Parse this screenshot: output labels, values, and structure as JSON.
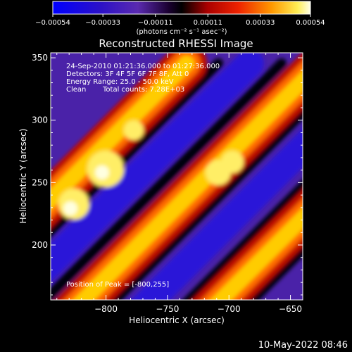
{
  "chart_data": {
    "type": "heatmap",
    "title": "Reconstructed RHESSI Image",
    "xlabel": "Heliocentric X (arcsec)",
    "ylabel": "Heliocentric Y (arcsec)",
    "xlim": [
      -845,
      -640
    ],
    "ylim": [
      156,
      354
    ],
    "x_ticks": [
      -800,
      -750,
      -700,
      -650
    ],
    "x_tick_labels": [
      "−800",
      "−750",
      "−700",
      "−650"
    ],
    "y_ticks": [
      200,
      250,
      300,
      350
    ],
    "y_tick_labels": [
      "200",
      "250",
      "300",
      "350"
    ],
    "colorbar": {
      "vmin": -0.00054,
      "vmax": 0.00054,
      "ticks": [
        -0.00054,
        -0.00033,
        -0.00011,
        0.00011,
        0.00033,
        0.00054
      ],
      "tick_labels": [
        "−0.00054",
        "−0.00033",
        "−0.00011",
        "0.00011",
        "0.00033",
        "0.00054"
      ],
      "units_label": "(photons cm⁻² s⁻¹ asec⁻²)",
      "colormap": [
        "#0000ff",
        "#3a1aa0",
        "#5a2ab0",
        "#000000",
        "#aa0000",
        "#ee2200",
        "#ff8800",
        "#ffdd00",
        "#ffffcc"
      ]
    },
    "annotations": {
      "time_range": "24-Sep-2010 01:21:36.000 to 01:27:36.000",
      "detectors": "Detectors: 3F 4F 5F 6F 7F 8F, Att 0",
      "energy_range": "Energy Range: 25.0 - 50.0 keV",
      "clean": "Clean",
      "total_counts": "Total counts: 7.28E+03",
      "peak": "Position of Peak = [-800,255]"
    },
    "peak_position": [
      -800,
      255
    ],
    "stripe_pattern": {
      "direction": "diagonal, lower-left to upper-right",
      "bright_bands": 3,
      "dark_bands": 3
    }
  },
  "footer": {
    "date": "10-May-2022 08:46"
  },
  "colors": {
    "background": "#000000",
    "text": "#ffffff"
  }
}
